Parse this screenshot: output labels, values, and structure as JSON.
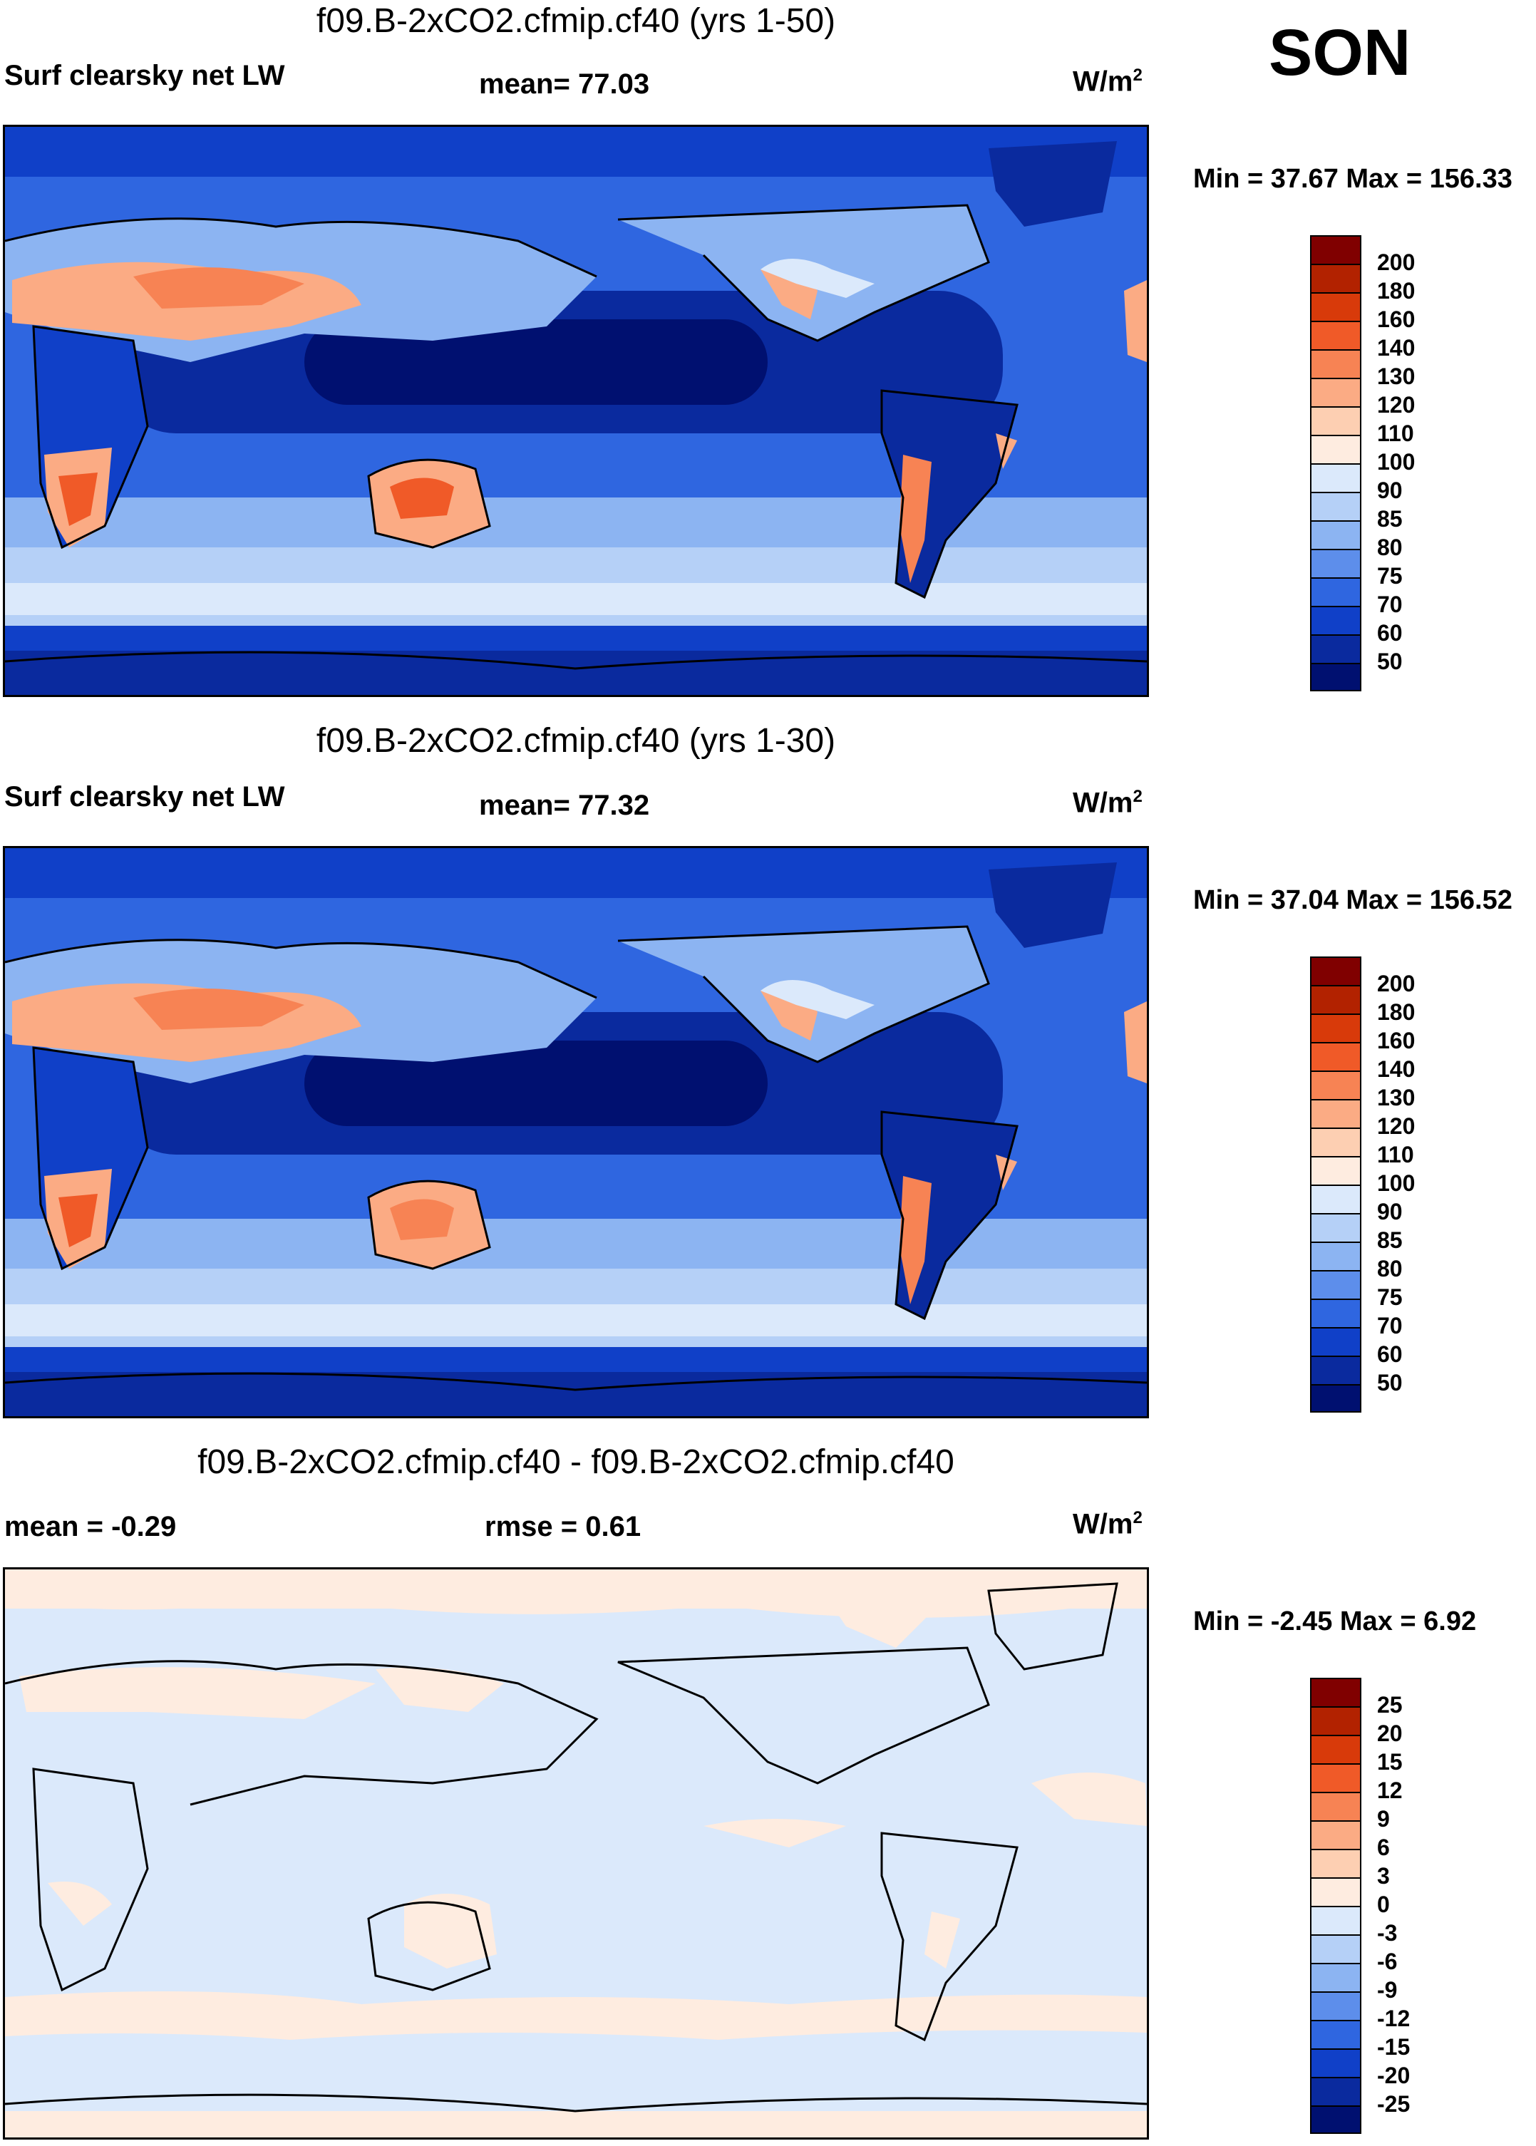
{
  "season": "SON",
  "panels": [
    {
      "title": "f09.B-2xCO2.cfmip.cf40 (yrs 1-50)",
      "left_label": "Surf clearsky net LW",
      "center_label": "mean=  77.03",
      "units": "W/m",
      "units_sup": "2",
      "minmax": "Min =  37.67 Max = 156.33",
      "colorbar_ticks": [
        "200",
        "180",
        "160",
        "140",
        "130",
        "120",
        "110",
        "100",
        "90",
        "85",
        "80",
        "75",
        "70",
        "60",
        "50"
      ]
    },
    {
      "title": "f09.B-2xCO2.cfmip.cf40 (yrs 1-30)",
      "left_label": "Surf clearsky net LW",
      "center_label": "mean=  77.32",
      "units": "W/m",
      "units_sup": "2",
      "minmax": "Min =  37.04 Max = 156.52",
      "colorbar_ticks": [
        "200",
        "180",
        "160",
        "140",
        "130",
        "120",
        "110",
        "100",
        "90",
        "85",
        "80",
        "75",
        "70",
        "60",
        "50"
      ]
    },
    {
      "title": "f09.B-2xCO2.cfmip.cf40 - f09.B-2xCO2.cfmip.cf40",
      "left_label": "mean =  -0.29",
      "center_label": "rmse =   0.61",
      "units": "W/m",
      "units_sup": "2",
      "minmax": "Min =  -2.45 Max =   6.92",
      "colorbar_ticks": [
        "25",
        "20",
        "15",
        "12",
        "9",
        "6",
        "3",
        "0",
        "-3",
        "-6",
        "-9",
        "-12",
        "-15",
        "-20",
        "-25"
      ]
    }
  ],
  "colors": {
    "scale": [
      "#800000",
      "#b22200",
      "#d83a0a",
      "#f05a28",
      "#f78354",
      "#fbab84",
      "#fdcfb2",
      "#feece0",
      "#dbe9fb",
      "#b5d0f7",
      "#8cb4f2",
      "#5d8eeb",
      "#2f66e0",
      "#1040c8",
      "#0a2a9e",
      "#001070"
    ]
  }
}
